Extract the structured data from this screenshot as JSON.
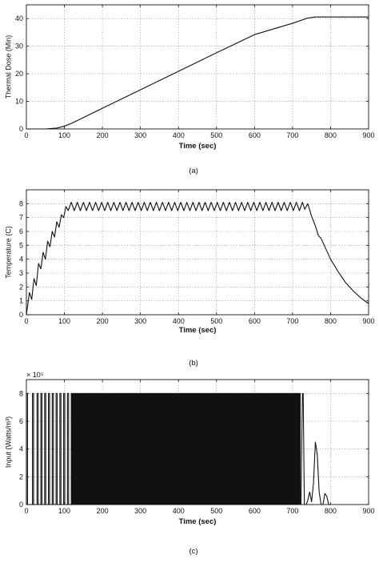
{
  "chart_data": [
    {
      "id": "a",
      "type": "line",
      "caption": "(a)",
      "xlabel": "Time (sec)",
      "ylabel": "Thermal Dose (Min)",
      "xlim": [
        0,
        900
      ],
      "ylim": [
        0,
        45
      ],
      "xticks": [
        0,
        100,
        200,
        300,
        400,
        500,
        600,
        700,
        800,
        900
      ],
      "yticks": [
        0,
        10,
        20,
        30,
        40
      ],
      "grid": true,
      "series": [
        {
          "x": [
            0,
            50,
            80,
            100,
            120,
            200,
            300,
            400,
            500,
            600,
            700,
            740,
            760,
            800,
            900
          ],
          "y": [
            0,
            0,
            0.3,
            1.0,
            2.1,
            7.5,
            14.2,
            20.9,
            27.6,
            34.2,
            38.3,
            40.2,
            40.6,
            40.6,
            40.6
          ]
        }
      ]
    },
    {
      "id": "b",
      "type": "line",
      "caption": "(b)",
      "xlabel": "Time (sec)",
      "ylabel": "Temperature (C)",
      "xlim": [
        0,
        900
      ],
      "ylim": [
        0,
        9
      ],
      "xticks": [
        0,
        100,
        200,
        300,
        400,
        500,
        600,
        700,
        800,
        900
      ],
      "yticks": [
        0,
        1,
        2,
        3,
        4,
        5,
        6,
        7,
        8
      ],
      "grid": true,
      "series": [
        {
          "x": [
            0,
            8,
            14,
            20,
            26,
            32,
            38,
            44,
            50,
            56,
            62,
            68,
            74,
            80,
            86,
            92,
            98,
            104,
            110,
            118,
            126,
            134,
            142,
            150,
            158,
            166,
            174,
            182,
            190,
            198,
            206,
            214,
            222,
            230,
            238,
            246,
            254,
            262,
            270,
            278,
            286,
            294,
            302,
            310,
            318,
            326,
            334,
            342,
            350,
            358,
            366,
            374,
            382,
            390,
            398,
            406,
            414,
            422,
            430,
            438,
            446,
            454,
            462,
            470,
            478,
            486,
            494,
            502,
            510,
            518,
            526,
            534,
            542,
            550,
            558,
            566,
            574,
            582,
            590,
            598,
            606,
            614,
            622,
            630,
            638,
            646,
            654,
            662,
            670,
            678,
            686,
            694,
            702,
            710,
            718,
            726,
            732,
            740,
            750,
            760,
            768,
            775,
            785,
            800,
            820,
            840,
            860,
            880,
            900
          ],
          "y": [
            0.0,
            1.6,
            1.1,
            2.6,
            2.1,
            3.7,
            3.3,
            4.5,
            4.0,
            5.3,
            4.9,
            6.0,
            5.6,
            6.7,
            6.3,
            7.2,
            7.0,
            7.8,
            7.5,
            8.1,
            7.5,
            8.1,
            7.5,
            8.1,
            7.5,
            8.1,
            7.5,
            8.1,
            7.5,
            8.1,
            7.5,
            8.1,
            7.5,
            8.1,
            7.5,
            8.1,
            7.5,
            8.1,
            7.5,
            8.1,
            7.5,
            8.1,
            7.5,
            8.1,
            7.5,
            8.1,
            7.5,
            8.1,
            7.5,
            8.1,
            7.5,
            8.1,
            7.5,
            8.1,
            7.5,
            8.1,
            7.5,
            8.1,
            7.5,
            8.1,
            7.5,
            8.1,
            7.5,
            8.1,
            7.5,
            8.1,
            7.5,
            8.1,
            7.5,
            8.1,
            7.5,
            8.1,
            7.5,
            8.1,
            7.5,
            8.1,
            7.5,
            8.1,
            7.5,
            8.1,
            7.5,
            8.1,
            7.5,
            8.1,
            7.5,
            8.1,
            7.5,
            8.1,
            7.5,
            8.1,
            7.5,
            8.1,
            7.5,
            8.1,
            7.5,
            8.1,
            7.6,
            8.0,
            7.1,
            6.4,
            5.7,
            5.5,
            4.9,
            4.0,
            3.1,
            2.3,
            1.7,
            1.2,
            0.8
          ]
        }
      ]
    },
    {
      "id": "c",
      "type": "line",
      "caption": "(c)",
      "xlabel": "Time (sec)",
      "ylabel": "Input (Watts/m³)",
      "y_multiplier": "× 10⁵",
      "xlim": [
        0,
        900
      ],
      "ylim": [
        0,
        9
      ],
      "xticks": [
        0,
        100,
        200,
        300,
        400,
        500,
        600,
        700,
        800,
        900
      ],
      "yticks": [
        0,
        2,
        4,
        6,
        8
      ],
      "grid": true,
      "pulse_train": {
        "high": 8,
        "low": 0,
        "pulses": [
          [
            0,
            3
          ],
          [
            16,
            19
          ],
          [
            28,
            31
          ],
          [
            38,
            41
          ],
          [
            48,
            51
          ],
          [
            58,
            61
          ],
          [
            68,
            71
          ],
          [
            78,
            81
          ],
          [
            88,
            91
          ],
          [
            98,
            101
          ],
          [
            108,
            111
          ],
          [
            118,
            120
          ],
          [
            122,
            124
          ],
          [
            126,
            128
          ],
          [
            130,
            132
          ],
          [
            134,
            136
          ],
          [
            138,
            140
          ],
          [
            142,
            144
          ],
          [
            146,
            148
          ],
          [
            150,
            152
          ],
          [
            154,
            156
          ],
          [
            158,
            160
          ],
          [
            162,
            164
          ],
          [
            166,
            168
          ],
          [
            170,
            172
          ],
          [
            174,
            176
          ],
          [
            178,
            180
          ],
          [
            182,
            184
          ],
          [
            186,
            188
          ],
          [
            190,
            192
          ],
          [
            194,
            196
          ],
          [
            198,
            200
          ],
          [
            202,
            204
          ],
          [
            206,
            208
          ],
          [
            210,
            212
          ],
          [
            214,
            216
          ],
          [
            218,
            220
          ],
          [
            222,
            224
          ],
          [
            226,
            228
          ],
          [
            230,
            232
          ],
          [
            234,
            236
          ],
          [
            238,
            240
          ],
          [
            242,
            244
          ],
          [
            246,
            248
          ],
          [
            250,
            252
          ],
          [
            254,
            256
          ],
          [
            258,
            260
          ],
          [
            262,
            264
          ],
          [
            266,
            268
          ],
          [
            270,
            272
          ],
          [
            274,
            276
          ],
          [
            278,
            280
          ],
          [
            282,
            284
          ],
          [
            286,
            288
          ],
          [
            290,
            292
          ],
          [
            294,
            296
          ],
          [
            298,
            300
          ],
          [
            302,
            304
          ],
          [
            306,
            308
          ],
          [
            310,
            312
          ],
          [
            314,
            316
          ],
          [
            318,
            320
          ],
          [
            322,
            324
          ],
          [
            326,
            328
          ],
          [
            330,
            332
          ],
          [
            334,
            336
          ],
          [
            338,
            340
          ],
          [
            342,
            344
          ],
          [
            346,
            348
          ],
          [
            350,
            352
          ],
          [
            354,
            356
          ],
          [
            358,
            360
          ],
          [
            362,
            364
          ],
          [
            366,
            368
          ],
          [
            370,
            372
          ],
          [
            374,
            376
          ],
          [
            378,
            380
          ],
          [
            382,
            384
          ],
          [
            386,
            388
          ],
          [
            390,
            392
          ],
          [
            394,
            396
          ],
          [
            398,
            400
          ],
          [
            402,
            404
          ],
          [
            406,
            408
          ],
          [
            410,
            412
          ],
          [
            414,
            416
          ],
          [
            418,
            420
          ],
          [
            422,
            424
          ],
          [
            426,
            428
          ],
          [
            430,
            432
          ],
          [
            434,
            436
          ],
          [
            438,
            440
          ],
          [
            442,
            444
          ],
          [
            446,
            448
          ],
          [
            450,
            452
          ],
          [
            454,
            456
          ],
          [
            458,
            460
          ],
          [
            462,
            464
          ],
          [
            466,
            468
          ],
          [
            470,
            472
          ],
          [
            474,
            476
          ],
          [
            478,
            480
          ],
          [
            482,
            484
          ],
          [
            486,
            488
          ],
          [
            490,
            492
          ],
          [
            494,
            496
          ],
          [
            498,
            500
          ],
          [
            502,
            504
          ],
          [
            506,
            508
          ],
          [
            510,
            512
          ],
          [
            514,
            516
          ],
          [
            518,
            520
          ],
          [
            522,
            524
          ],
          [
            526,
            528
          ],
          [
            530,
            532
          ],
          [
            534,
            536
          ],
          [
            538,
            540
          ],
          [
            542,
            544
          ],
          [
            546,
            548
          ],
          [
            550,
            552
          ],
          [
            554,
            556
          ],
          [
            558,
            560
          ],
          [
            562,
            564
          ],
          [
            566,
            568
          ],
          [
            570,
            572
          ],
          [
            574,
            576
          ],
          [
            578,
            580
          ],
          [
            582,
            584
          ],
          [
            586,
            588
          ],
          [
            590,
            592
          ],
          [
            594,
            596
          ],
          [
            598,
            600
          ],
          [
            602,
            604
          ],
          [
            606,
            608
          ],
          [
            610,
            612
          ],
          [
            614,
            616
          ],
          [
            618,
            620
          ],
          [
            622,
            624
          ],
          [
            626,
            628
          ],
          [
            630,
            632
          ],
          [
            634,
            636
          ],
          [
            638,
            640
          ],
          [
            642,
            644
          ],
          [
            646,
            648
          ],
          [
            650,
            652
          ],
          [
            654,
            656
          ],
          [
            658,
            660
          ],
          [
            662,
            664
          ],
          [
            666,
            668
          ],
          [
            670,
            672
          ],
          [
            674,
            676
          ],
          [
            678,
            680
          ],
          [
            682,
            684
          ],
          [
            686,
            688
          ],
          [
            690,
            692
          ],
          [
            694,
            696
          ],
          [
            698,
            700
          ],
          [
            702,
            704
          ],
          [
            706,
            708
          ],
          [
            710,
            712
          ],
          [
            714,
            716
          ],
          [
            718,
            720
          ]
        ]
      },
      "series": [
        {
          "name": "",
          "x": [
            722,
            726,
            728,
            731,
            734,
            736,
            740,
            745,
            750,
            755,
            760,
            765,
            770,
            775,
            780,
            785,
            790,
            795,
            800
          ],
          "y": [
            0,
            8,
            8,
            0,
            0,
            0,
            0.3,
            0.9,
            0.2,
            1.5,
            4.5,
            3.6,
            0.9,
            0,
            0,
            0.8,
            0.6,
            0,
            0
          ]
        }
      ]
    }
  ]
}
